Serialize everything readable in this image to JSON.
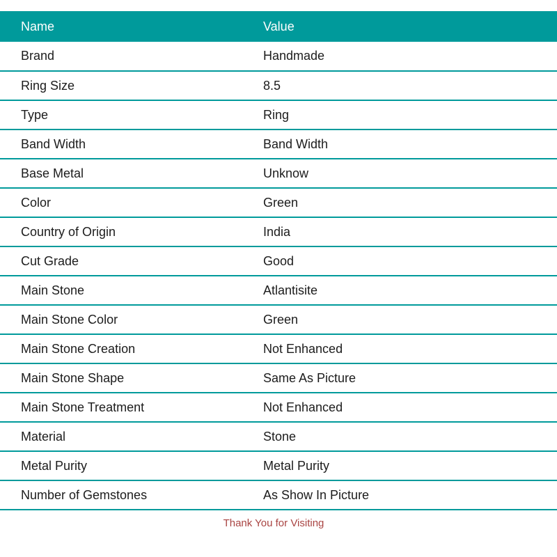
{
  "table": {
    "columns": [
      "Name",
      "Value"
    ],
    "rows": [
      {
        "name": "Brand",
        "value": "Handmade"
      },
      {
        "name": "Ring Size",
        "value": "8.5"
      },
      {
        "name": "Type",
        "value": "Ring"
      },
      {
        "name": "Band Width",
        "value": "Band Width"
      },
      {
        "name": "Base Metal",
        "value": "Unknow"
      },
      {
        "name": "Color",
        "value": "Green"
      },
      {
        "name": "Country of Origin",
        "value": "India"
      },
      {
        "name": "Cut Grade",
        "value": "Good"
      },
      {
        "name": "Main Stone",
        "value": "Atlantisite"
      },
      {
        "name": "Main Stone Color",
        "value": "Green"
      },
      {
        "name": "Main Stone Creation",
        "value": "Not Enhanced"
      },
      {
        "name": "Main Stone Shape",
        "value": "Same As Picture"
      },
      {
        "name": "Main Stone Treatment",
        "value": "Not Enhanced"
      },
      {
        "name": "Material",
        "value": "Stone"
      },
      {
        "name": "Metal Purity",
        "value": "Metal Purity"
      },
      {
        "name": "Number of Gemstones",
        "value": "As Show In Picture"
      }
    ]
  },
  "footer": {
    "message": "Thank You for Visiting"
  },
  "colors": {
    "accent_teal": "#009a9b",
    "header_text": "#ffffff",
    "row_text": "#1c1c1c",
    "footer_text": "#a94442"
  }
}
